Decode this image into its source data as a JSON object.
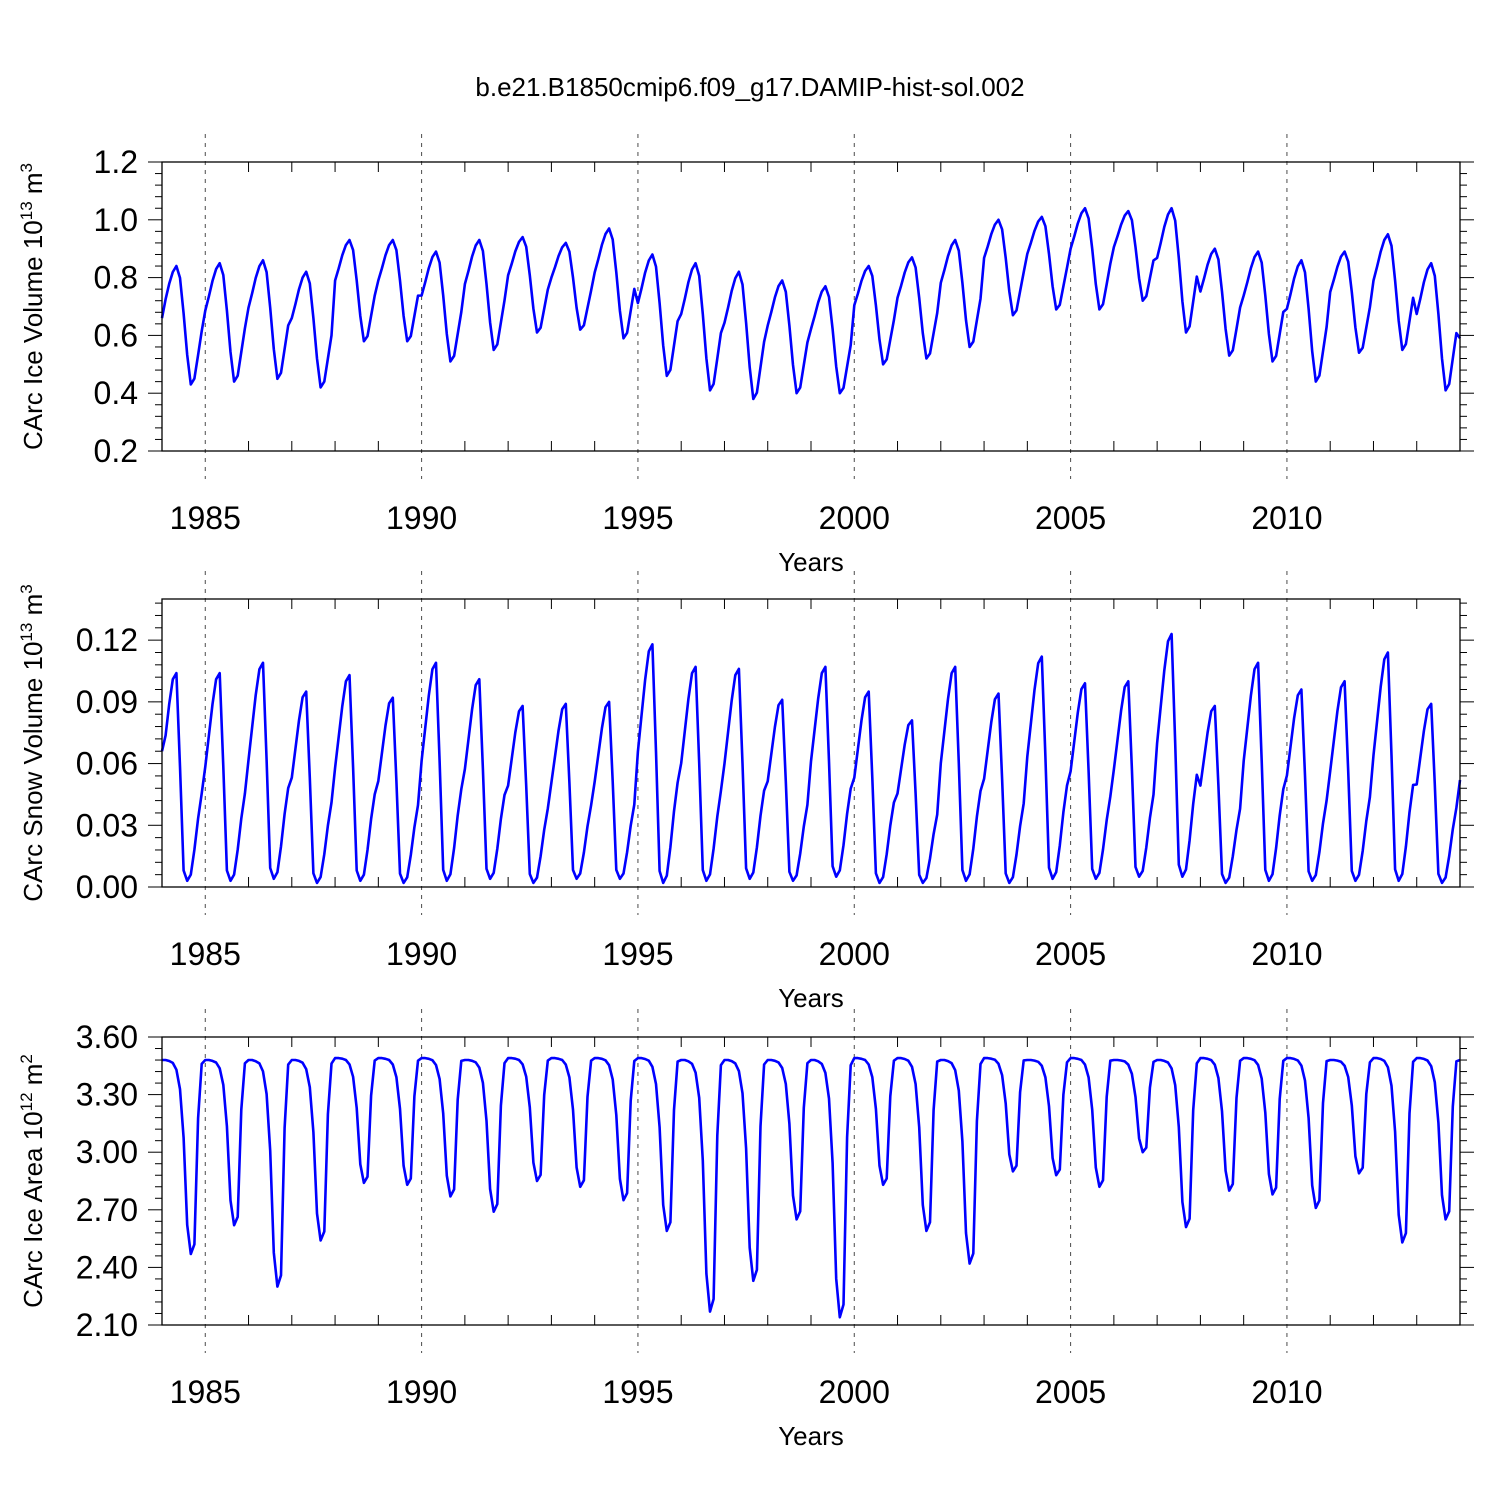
{
  "title": "b.e21.B1850cmip6.f09_g17.DAMIP-hist-sol.002",
  "colors": {
    "series": "#0000ff",
    "axes": "#000000",
    "grid": "#000000"
  },
  "chart_data": [
    {
      "type": "line",
      "name": "ice-volume",
      "title": "b.e21.B1850cmip6.f09_g17.DAMIP-hist-sol.002",
      "xlabel": "Years",
      "ylabel": "CArc Ice Volume 10",
      "ylabel_sup": "13",
      "ylabel_unit": " m",
      "ylabel_unit_sup": "3",
      "xlim": [
        1984.0,
        2014.0
      ],
      "ylim": [
        0.2,
        1.2
      ],
      "yticks": [
        0.2,
        0.4,
        0.6,
        0.8,
        1.0,
        1.2
      ],
      "ytick_labels": [
        "0.2",
        "0.4",
        "0.6",
        "0.8",
        "1.0",
        "1.2"
      ],
      "xticks": [
        1985,
        1990,
        1995,
        2000,
        2005,
        2010
      ],
      "xtick_labels": [
        "1985",
        "1990",
        "1995",
        "2000",
        "2005",
        "2010"
      ],
      "year_start": 1984,
      "annual_max": [
        0.84,
        0.85,
        0.86,
        0.82,
        0.93,
        0.93,
        0.89,
        0.93,
        0.94,
        0.92,
        0.97,
        0.88,
        0.85,
        0.82,
        0.79,
        0.77,
        0.84,
        0.87,
        0.93,
        1.0,
        1.01,
        1.04,
        1.03,
        1.04,
        0.9,
        0.89,
        0.86,
        0.89,
        0.95,
        0.85
      ],
      "annual_min": [
        0.43,
        0.44,
        0.45,
        0.42,
        0.58,
        0.58,
        0.51,
        0.55,
        0.61,
        0.62,
        0.59,
        0.46,
        0.41,
        0.38,
        0.4,
        0.4,
        0.5,
        0.52,
        0.56,
        0.67,
        0.69,
        0.69,
        0.72,
        0.61,
        0.53,
        0.51,
        0.44,
        0.54,
        0.55,
        0.41
      ],
      "start_value": 0.66,
      "end_value": 0.59
    },
    {
      "type": "line",
      "name": "snow-volume",
      "xlabel": "Years",
      "ylabel": "CArc Snow Volume 10",
      "ylabel_sup": "13",
      "ylabel_unit": " m",
      "ylabel_unit_sup": "3",
      "xlim": [
        1984.0,
        2014.0
      ],
      "ylim": [
        0.0,
        0.14
      ],
      "yticks": [
        0.0,
        0.03,
        0.06,
        0.09,
        0.12
      ],
      "ytick_labels": [
        "0.00",
        "0.03",
        "0.06",
        "0.09",
        "0.12"
      ],
      "xticks": [
        1985,
        1990,
        1995,
        2000,
        2005,
        2010
      ],
      "xtick_labels": [
        "1985",
        "1990",
        "1995",
        "2000",
        "2005",
        "2010"
      ],
      "year_start": 1984,
      "annual_max": [
        0.104,
        0.104,
        0.109,
        0.095,
        0.103,
        0.092,
        0.109,
        0.101,
        0.088,
        0.089,
        0.09,
        0.118,
        0.107,
        0.106,
        0.091,
        0.107,
        0.095,
        0.081,
        0.107,
        0.094,
        0.112,
        0.099,
        0.1,
        0.123,
        0.088,
        0.109,
        0.096,
        0.1,
        0.114,
        0.089
      ],
      "annual_min": [
        0.003,
        0.003,
        0.004,
        0.002,
        0.003,
        0.002,
        0.003,
        0.004,
        0.002,
        0.004,
        0.004,
        0.002,
        0.003,
        0.004,
        0.003,
        0.005,
        0.002,
        0.002,
        0.003,
        0.002,
        0.004,
        0.004,
        0.005,
        0.005,
        0.002,
        0.003,
        0.003,
        0.003,
        0.003,
        0.002
      ],
      "start_value": 0.066,
      "end_value": 0.052
    },
    {
      "type": "line",
      "name": "ice-area",
      "xlabel": "Years",
      "ylabel": "CArc Ice Area 10",
      "ylabel_sup": "12",
      "ylabel_unit": " m",
      "ylabel_unit_sup": "2",
      "xlim": [
        1984.0,
        2014.0
      ],
      "ylim": [
        2.1,
        3.6
      ],
      "yticks": [
        2.1,
        2.4,
        2.7,
        3.0,
        3.3,
        3.6
      ],
      "ytick_labels": [
        "2.10",
        "2.40",
        "2.70",
        "3.00",
        "3.30",
        "3.60"
      ],
      "xticks": [
        1985,
        1990,
        1995,
        2000,
        2005,
        2010
      ],
      "xtick_labels": [
        "1985",
        "1990",
        "1995",
        "2000",
        "2005",
        "2010"
      ],
      "year_start": 1984,
      "annual_max": [
        3.48,
        3.48,
        3.48,
        3.48,
        3.49,
        3.49,
        3.49,
        3.48,
        3.49,
        3.49,
        3.49,
        3.49,
        3.48,
        3.48,
        3.48,
        3.48,
        3.49,
        3.49,
        3.48,
        3.49,
        3.48,
        3.49,
        3.48,
        3.48,
        3.49,
        3.49,
        3.49,
        3.48,
        3.49,
        3.49
      ],
      "annual_min": [
        2.47,
        2.62,
        2.3,
        2.54,
        2.84,
        2.83,
        2.77,
        2.69,
        2.85,
        2.82,
        2.75,
        2.59,
        2.17,
        2.33,
        2.65,
        2.14,
        2.83,
        2.59,
        2.42,
        2.9,
        2.88,
        2.82,
        3.0,
        2.61,
        2.8,
        2.78,
        2.71,
        2.89,
        2.53,
        2.65
      ],
      "start_value": 3.48,
      "end_value": 3.48
    }
  ]
}
